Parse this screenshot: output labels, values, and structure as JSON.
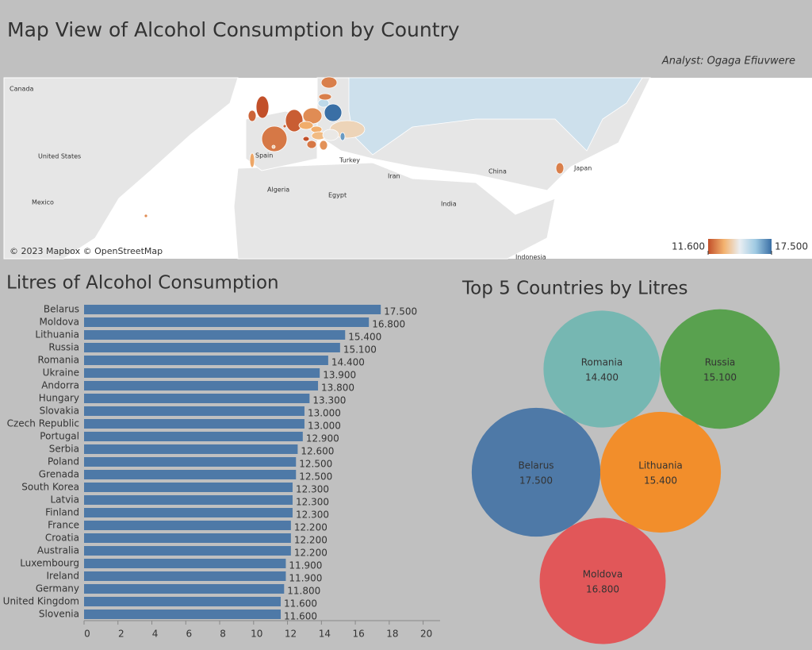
{
  "chart_data": [
    {
      "type": "map",
      "title": "Map View of Alcohol Consumption by Country",
      "subtitle": "Analyst: Ogaga Efiuvwere",
      "place_labels": [
        "Canada",
        "United States",
        "Mexico",
        "Spain",
        "Algeria",
        "Egypt",
        "Turkey",
        "Iran",
        "India",
        "China",
        "Japan",
        "Indonesia"
      ],
      "attribution": "© 2023 Mapbox © OpenStreetMap",
      "color_lim": [
        11.6,
        17.5
      ],
      "color_ticks": [
        {
          "value": 11.6,
          "label": "11.600"
        },
        {
          "value": 17.5,
          "label": "17.500"
        }
      ],
      "colorscale": [
        "#c2502a",
        "#f3b26f",
        "#e9eef2",
        "#9ec9e2",
        "#3a6fa5"
      ]
    },
    {
      "type": "hbar",
      "title": "Litres of Alcohol Consumption",
      "color": "#4e79a7",
      "categories": [
        "Belarus",
        "Moldova",
        "Lithuania",
        "Russia",
        "Romania",
        "Ukraine",
        "Andorra",
        "Hungary",
        "Slovakia",
        "Czech Republic",
        "Portugal",
        "Serbia",
        "Poland",
        "Grenada",
        "South Korea",
        "Latvia",
        "Finland",
        "France",
        "Croatia",
        "Australia",
        "Luxembourg",
        "Ireland",
        "Germany",
        "United Kingdom",
        "Slovenia"
      ],
      "values": [
        17.5,
        16.8,
        15.4,
        15.1,
        14.4,
        13.9,
        13.8,
        13.3,
        13.0,
        13.0,
        12.9,
        12.6,
        12.5,
        12.5,
        12.3,
        12.3,
        12.3,
        12.2,
        12.2,
        12.2,
        11.9,
        11.9,
        11.8,
        11.6,
        11.6
      ],
      "value_labels": [
        "17.500",
        "16.800",
        "15.400",
        "15.100",
        "14.400",
        "13.900",
        "13.800",
        "13.300",
        "13.000",
        "13.000",
        "12.900",
        "12.600",
        "12.500",
        "12.500",
        "12.300",
        "12.300",
        "12.300",
        "12.200",
        "12.200",
        "12.200",
        "11.900",
        "11.900",
        "11.800",
        "11.600",
        "11.600"
      ],
      "xlim": [
        0,
        21
      ],
      "xticks": [
        0,
        2,
        4,
        6,
        8,
        10,
        12,
        14,
        16,
        18,
        20
      ]
    },
    {
      "type": "bubble",
      "title": "Top 5 Countries by Litres",
      "categories": [
        "Romania",
        "Russia",
        "Belarus",
        "Lithuania",
        "Moldova"
      ],
      "values": [
        14.4,
        15.1,
        17.5,
        15.4,
        16.8
      ],
      "value_labels": [
        "14.400",
        "15.100",
        "17.500",
        "15.400",
        "16.800"
      ],
      "colors": [
        "#76b7b2",
        "#59a14f",
        "#4e79a7",
        "#f28e2b",
        "#e15759"
      ]
    }
  ]
}
